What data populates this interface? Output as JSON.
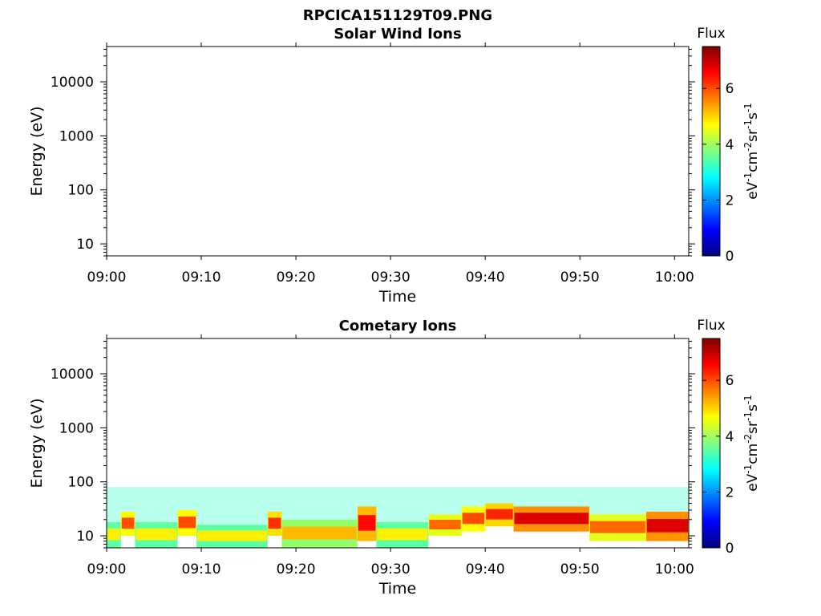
{
  "figure": {
    "filename": "RPCICA151129T09.PNG"
  },
  "chart_data": [
    {
      "type": "heatmap",
      "title": "Solar Wind Ions",
      "xlabel": "Time",
      "ylabel": "Energy (eV)",
      "x_ticks": [
        "09:00",
        "09:10",
        "09:20",
        "09:30",
        "09:40",
        "09:50",
        "10:00"
      ],
      "x_range_minutes": [
        0,
        61.5
      ],
      "y_scale": "log",
      "y_range": [
        6,
        45000
      ],
      "y_ticks": [
        "10",
        "100",
        "1000",
        "10000"
      ],
      "colorbar": {
        "label": "Flux",
        "unit": "eV-1cm-2sr-1s-1",
        "ticks": [
          "0",
          "2",
          "4",
          "6"
        ],
        "range": [
          0,
          7.5
        ],
        "colormap": "jet"
      },
      "bands": []
    },
    {
      "type": "heatmap",
      "title": "Cometary Ions",
      "xlabel": "Time",
      "ylabel": "Energy (eV)",
      "x_ticks": [
        "09:00",
        "09:10",
        "09:20",
        "09:30",
        "09:40",
        "09:50",
        "10:00"
      ],
      "x_range_minutes": [
        0,
        61.5
      ],
      "y_scale": "log",
      "y_range": [
        6,
        45000
      ],
      "y_ticks": [
        "10",
        "100",
        "1000",
        "10000"
      ],
      "colorbar": {
        "label": "Flux",
        "unit": "eV-1cm-2sr-1s-1",
        "ticks": [
          "0",
          "2",
          "4",
          "6"
        ],
        "range": [
          0,
          7.5
        ],
        "colormap": "jet"
      },
      "bands": [
        {
          "minutes": [
            0,
            1.5
          ],
          "energy": [
            6,
            18
          ],
          "flux": 4.8
        },
        {
          "minutes": [
            1.5,
            3.0
          ],
          "energy": [
            10,
            28
          ],
          "flux": 6.0
        },
        {
          "minutes": [
            3.0,
            7.5
          ],
          "energy": [
            6,
            18
          ],
          "flux": 4.8
        },
        {
          "minutes": [
            7.5,
            9.5
          ],
          "energy": [
            10,
            30
          ],
          "flux": 6.0
        },
        {
          "minutes": [
            9.5,
            17.0
          ],
          "energy": [
            6,
            16
          ],
          "flux": 4.8
        },
        {
          "minutes": [
            17.0,
            18.5
          ],
          "energy": [
            10,
            28
          ],
          "flux": 6.2
        },
        {
          "minutes": [
            18.5,
            26.5
          ],
          "energy": [
            6,
            20
          ],
          "flux": 5.2
        },
        {
          "minutes": [
            26.5,
            28.5
          ],
          "energy": [
            8,
            35
          ],
          "flux": 6.5
        },
        {
          "minutes": [
            28.5,
            34.0
          ],
          "energy": [
            6,
            18
          ],
          "flux": 4.8
        },
        {
          "minutes": [
            34.0,
            37.5
          ],
          "energy": [
            10,
            25
          ],
          "flux": 5.8
        },
        {
          "minutes": [
            37.5,
            40.0
          ],
          "energy": [
            12,
            35
          ],
          "flux": 6.0
        },
        {
          "minutes": [
            40.0,
            43.0
          ],
          "energy": [
            15,
            40
          ],
          "flux": 6.3
        },
        {
          "minutes": [
            43.0,
            51.0
          ],
          "energy": [
            12,
            35
          ],
          "flux": 6.8
        },
        {
          "minutes": [
            51.0,
            57.0
          ],
          "energy": [
            8,
            25
          ],
          "flux": 5.8
        },
        {
          "minutes": [
            57.0,
            61.5
          ],
          "energy": [
            8,
            28
          ],
          "flux": 6.8
        }
      ]
    }
  ]
}
